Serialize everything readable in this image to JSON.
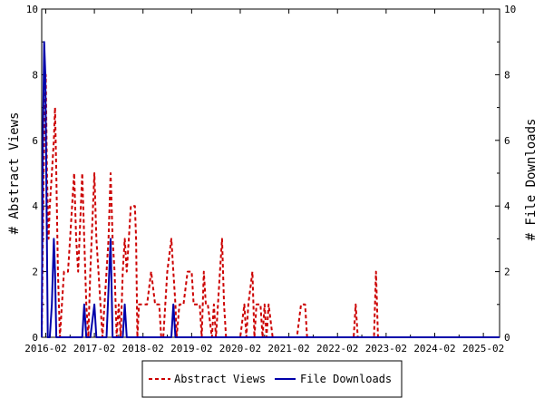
{
  "chart_data": {
    "type": "line",
    "x_tick_labels": [
      "2016-02",
      "2017-02",
      "2018-02",
      "2019-02",
      "2020-02",
      "2021-02",
      "2022-02",
      "2023-02",
      "2024-02",
      "2025-02"
    ],
    "x_start": "2016-01",
    "xlim_months": [
      0,
      113
    ],
    "ylim_left": [
      0,
      10
    ],
    "ylim_right": [
      0,
      10
    ],
    "y_ticks": [
      0,
      2,
      4,
      6,
      8,
      10
    ],
    "ylabel_left": "# Abstract Views",
    "ylabel_right": "# File Downloads",
    "legend_position": "bottom-center",
    "series": [
      {
        "name": "Abstract Views",
        "color": "#cc0000",
        "dash": "dashed",
        "points": [
          [
            0,
            0
          ],
          [
            0.3,
            3
          ],
          [
            0.7,
            7
          ],
          [
            1,
            8
          ],
          [
            1.3,
            5
          ],
          [
            1.7,
            3
          ],
          [
            2,
            4
          ],
          [
            2.5,
            5
          ],
          [
            3,
            6
          ],
          [
            3.3,
            7
          ],
          [
            3.6,
            5
          ],
          [
            4,
            2
          ],
          [
            4.5,
            0
          ],
          [
            5,
            1
          ],
          [
            5.5,
            2
          ],
          [
            6,
            2
          ],
          [
            6.5,
            2
          ],
          [
            7,
            3
          ],
          [
            7.5,
            4
          ],
          [
            8,
            5
          ],
          [
            8.5,
            3
          ],
          [
            9,
            2
          ],
          [
            10,
            5
          ],
          [
            10.5,
            3
          ],
          [
            11,
            1
          ],
          [
            11.5,
            0
          ],
          [
            12,
            2
          ],
          [
            13,
            5
          ],
          [
            13.5,
            3
          ],
          [
            14,
            2
          ],
          [
            14.5,
            1
          ],
          [
            15,
            0
          ],
          [
            16,
            2
          ],
          [
            16.5,
            3
          ],
          [
            17,
            5
          ],
          [
            17.5,
            3
          ],
          [
            18,
            2
          ],
          [
            18.5,
            0
          ],
          [
            19,
            1
          ],
          [
            19.5,
            0
          ],
          [
            20,
            2
          ],
          [
            20.5,
            3
          ],
          [
            21,
            2
          ],
          [
            21.5,
            3
          ],
          [
            22,
            4
          ],
          [
            23,
            4
          ],
          [
            23.3,
            3
          ],
          [
            23.6,
            0
          ],
          [
            24,
            1
          ],
          [
            25,
            1
          ],
          [
            26,
            1
          ],
          [
            27,
            2
          ],
          [
            28,
            1
          ],
          [
            29,
            1
          ],
          [
            29.5,
            0
          ],
          [
            30,
            0
          ],
          [
            30.5,
            1
          ],
          [
            31,
            2
          ],
          [
            32,
            3
          ],
          [
            32.5,
            2
          ],
          [
            33,
            1
          ],
          [
            33.3,
            0
          ],
          [
            34,
            1
          ],
          [
            35,
            1
          ],
          [
            36,
            2
          ],
          [
            37,
            2
          ],
          [
            37.5,
            1
          ],
          [
            38,
            1
          ],
          [
            39,
            1
          ],
          [
            39.5,
            0
          ],
          [
            40,
            2
          ],
          [
            40.5,
            1
          ],
          [
            41,
            1
          ],
          [
            42,
            0
          ],
          [
            42.5,
            1
          ],
          [
            43,
            0
          ],
          [
            44,
            2
          ],
          [
            44.5,
            3
          ],
          [
            45,
            1
          ],
          [
            45.5,
            0
          ],
          [
            46,
            0
          ],
          [
            47,
            0
          ],
          [
            48,
            0
          ],
          [
            49,
            0
          ],
          [
            50,
            1
          ],
          [
            50.5,
            0
          ],
          [
            51,
            1
          ],
          [
            52,
            2
          ],
          [
            52.5,
            0
          ],
          [
            53,
            1
          ],
          [
            54,
            1
          ],
          [
            54.5,
            0
          ],
          [
            55,
            1
          ],
          [
            55.5,
            0
          ],
          [
            56,
            1
          ],
          [
            57,
            0
          ],
          [
            58,
            0
          ],
          [
            59,
            0
          ],
          [
            60,
            0
          ],
          [
            61,
            0
          ],
          [
            62,
            0
          ],
          [
            63,
            0
          ],
          [
            64,
            1
          ],
          [
            65,
            1
          ],
          [
            65.5,
            0
          ],
          [
            66,
            0
          ],
          [
            67,
            0
          ],
          [
            68,
            0
          ],
          [
            69,
            0
          ],
          [
            70,
            0
          ],
          [
            71,
            0
          ],
          [
            72,
            0
          ],
          [
            73,
            0
          ],
          [
            74,
            0
          ],
          [
            75,
            0
          ],
          [
            76,
            0
          ],
          [
            77,
            0
          ],
          [
            77.5,
            1
          ],
          [
            78,
            0
          ],
          [
            79,
            0
          ],
          [
            80,
            0
          ],
          [
            81,
            0
          ],
          [
            82,
            0
          ],
          [
            82.5,
            2
          ],
          [
            83,
            0
          ],
          [
            84,
            0
          ],
          [
            85,
            0
          ],
          [
            86,
            0
          ],
          [
            87,
            0
          ],
          [
            88,
            0
          ],
          [
            89,
            0
          ],
          [
            90,
            0
          ],
          [
            91,
            0
          ],
          [
            92,
            0
          ],
          [
            93,
            0
          ],
          [
            94,
            0
          ],
          [
            95,
            0
          ],
          [
            96,
            0
          ],
          [
            97,
            0
          ],
          [
            98,
            0
          ],
          [
            99,
            0
          ],
          [
            100,
            0
          ],
          [
            101,
            0
          ],
          [
            102,
            0
          ],
          [
            103,
            0
          ],
          [
            104,
            0
          ],
          [
            105,
            0
          ],
          [
            106,
            0
          ],
          [
            107,
            0
          ],
          [
            108,
            0
          ],
          [
            109,
            0
          ],
          [
            110,
            0
          ],
          [
            111,
            0
          ],
          [
            112,
            0
          ],
          [
            113,
            0
          ]
        ]
      },
      {
        "name": "File Downloads",
        "color": "#0000aa",
        "dash": "solid",
        "points": [
          [
            0,
            0
          ],
          [
            0.3,
            6
          ],
          [
            0.6,
            9
          ],
          [
            0.9,
            8
          ],
          [
            1.2,
            4
          ],
          [
            1.5,
            0
          ],
          [
            2,
            0
          ],
          [
            2.5,
            1
          ],
          [
            3,
            3
          ],
          [
            3.3,
            2
          ],
          [
            3.6,
            0
          ],
          [
            4,
            0
          ],
          [
            5,
            0
          ],
          [
            6,
            0
          ],
          [
            7,
            0
          ],
          [
            8,
            0
          ],
          [
            9,
            0
          ],
          [
            10,
            0
          ],
          [
            10.5,
            1
          ],
          [
            11,
            0
          ],
          [
            12,
            0
          ],
          [
            13,
            1
          ],
          [
            13.5,
            0
          ],
          [
            14,
            0
          ],
          [
            15,
            0
          ],
          [
            16,
            0
          ],
          [
            17,
            3
          ],
          [
            17.5,
            0
          ],
          [
            18,
            0
          ],
          [
            19,
            0
          ],
          [
            20,
            0
          ],
          [
            20.5,
            1
          ],
          [
            21,
            0
          ],
          [
            22,
            0
          ],
          [
            23,
            0
          ],
          [
            24,
            0
          ],
          [
            25,
            0
          ],
          [
            26,
            0
          ],
          [
            27,
            0
          ],
          [
            28,
            0
          ],
          [
            29,
            0
          ],
          [
            30,
            0
          ],
          [
            31,
            0
          ],
          [
            32,
            0
          ],
          [
            32.5,
            1
          ],
          [
            33,
            0
          ],
          [
            34,
            0
          ],
          [
            35,
            0
          ],
          [
            36,
            0
          ],
          [
            37,
            0
          ],
          [
            38,
            0
          ],
          [
            39,
            0
          ],
          [
            40,
            0
          ],
          [
            41,
            0
          ],
          [
            42,
            0
          ],
          [
            43,
            0
          ],
          [
            44,
            0
          ],
          [
            45,
            0
          ],
          [
            46,
            0
          ],
          [
            47,
            0
          ],
          [
            48,
            0
          ],
          [
            49,
            0
          ],
          [
            50,
            0
          ],
          [
            51,
            0
          ],
          [
            52,
            0
          ],
          [
            53,
            0
          ],
          [
            54,
            0
          ],
          [
            55,
            0
          ],
          [
            56,
            0
          ],
          [
            57,
            0
          ],
          [
            58,
            0
          ],
          [
            59,
            0
          ],
          [
            60,
            0
          ],
          [
            61,
            0
          ],
          [
            62,
            0
          ],
          [
            63,
            0
          ],
          [
            64,
            0
          ],
          [
            65,
            0
          ],
          [
            66,
            0
          ],
          [
            67,
            0
          ],
          [
            68,
            0
          ],
          [
            69,
            0
          ],
          [
            70,
            0
          ],
          [
            71,
            0
          ],
          [
            72,
            0
          ],
          [
            73,
            0
          ],
          [
            74,
            0
          ],
          [
            75,
            0
          ],
          [
            76,
            0
          ],
          [
            77,
            0
          ],
          [
            78,
            0
          ],
          [
            79,
            0
          ],
          [
            80,
            0
          ],
          [
            81,
            0
          ],
          [
            82,
            0
          ],
          [
            83,
            0
          ],
          [
            84,
            0
          ],
          [
            85,
            0
          ],
          [
            86,
            0
          ],
          [
            87,
            0
          ],
          [
            88,
            0
          ],
          [
            89,
            0
          ],
          [
            90,
            0
          ],
          [
            91,
            0
          ],
          [
            92,
            0
          ],
          [
            93,
            0
          ],
          [
            94,
            0
          ],
          [
            95,
            0
          ],
          [
            96,
            0
          ],
          [
            97,
            0
          ],
          [
            98,
            0
          ],
          [
            99,
            0
          ],
          [
            100,
            0
          ],
          [
            101,
            0
          ],
          [
            102,
            0
          ],
          [
            103,
            0
          ],
          [
            104,
            0
          ],
          [
            105,
            0
          ],
          [
            106,
            0
          ],
          [
            107,
            0
          ],
          [
            108,
            0
          ],
          [
            109,
            0
          ],
          [
            110,
            0
          ],
          [
            111,
            0
          ],
          [
            112,
            0
          ],
          [
            113,
            0
          ]
        ]
      }
    ]
  }
}
